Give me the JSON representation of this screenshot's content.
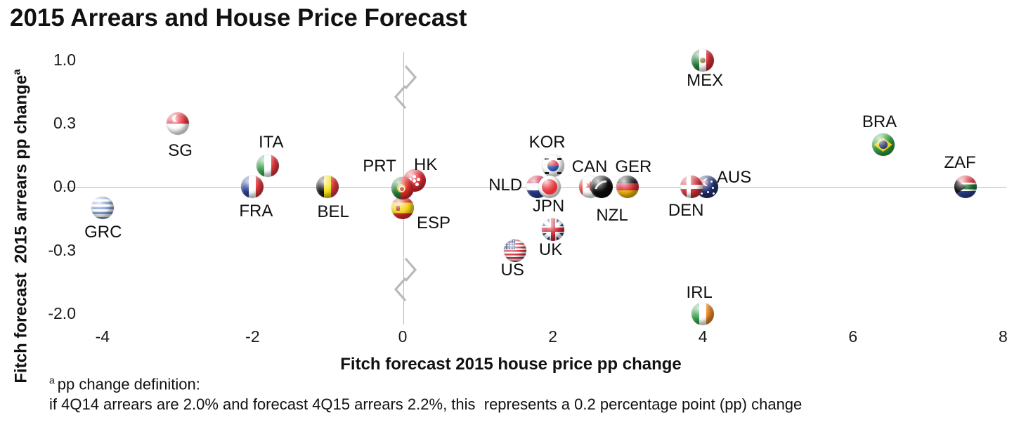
{
  "title": "2015 Arrears and House Price Forecast",
  "y_axis": {
    "label_main": "Fitch forecast  2015 arrears pp change",
    "label_sup": "a",
    "tick_labels": [
      "1.0",
      "0.3",
      "0.0",
      "-0.3",
      "-2.0"
    ]
  },
  "x_axis": {
    "label": "Fitch forecast 2015 house price pp change",
    "tick_labels": [
      "-4",
      "-2",
      "0",
      "2",
      "4",
      "6",
      "8"
    ]
  },
  "footnote": {
    "sup": "a",
    "line1": "pp change definition:",
    "line2": "if 4Q14 arrears are 2.0% and forecast 4Q15 arrears 2.2%, this  represents a 0.2 percentage point (pp) change"
  },
  "chart_data": {
    "type": "scatter",
    "title": "2015 Arrears and House Price Forecast",
    "xlabel": "Fitch forecast 2015 house price pp change",
    "ylabel": "Fitch forecast 2015 arrears pp change (a)",
    "x_ticks": [
      -4,
      -2,
      0,
      2,
      4,
      6,
      8
    ],
    "y_ticks": [
      1.0,
      0.3,
      0.0,
      -0.3,
      -2.0
    ],
    "xlim": [
      -4,
      8
    ],
    "grid": false,
    "y_scale_note": "non-linear y axis; break symbols between 1.0 and 0.3 and between -0.3 and -2.0",
    "marker_style": "glossy circular country-flag icons",
    "points": [
      {
        "code": "GRC",
        "x": -4.0,
        "y": -0.1,
        "label_offset": [
          1,
          35
        ]
      },
      {
        "code": "SG",
        "x": -3.0,
        "y": 0.3,
        "label_offset": [
          4,
          39
        ]
      },
      {
        "code": "FRA",
        "x": -2.0,
        "y": 0.0,
        "label_offset": [
          5,
          35
        ]
      },
      {
        "code": "ITA",
        "x": -1.8,
        "y": 0.1,
        "label_offset": [
          5,
          -33
        ]
      },
      {
        "code": "BEL",
        "x": -1.0,
        "y": 0.0,
        "label_offset": [
          8,
          36
        ]
      },
      {
        "code": "HK",
        "x": 0.1,
        "y": 0.0,
        "jitter": [
          6,
          -9
        ],
        "label_offset": [
          16,
          -22
        ]
      },
      {
        "code": "ESP",
        "x": 0.0,
        "y": -0.1,
        "label_offset": [
          44,
          22
        ]
      },
      {
        "code": "PRT",
        "x": 0.0,
        "y": 0.0,
        "jitter": [
          0,
          2
        ],
        "label_offset": [
          -33,
          -31
        ]
      },
      {
        "code": "KOR",
        "x": 2.0,
        "y": 0.1,
        "label_offset": [
          -8,
          -33
        ]
      },
      {
        "code": "NLD",
        "x": 1.8,
        "y": 0.0,
        "label_offset": [
          -46,
          -2
        ]
      },
      {
        "code": "JPN",
        "x": 2.0,
        "y": 0.0,
        "jitter": [
          -5,
          0
        ],
        "label_offset": [
          -1,
          28
        ]
      },
      {
        "code": "US",
        "x": 1.5,
        "y": -0.3,
        "label_offset": [
          -4,
          28
        ]
      },
      {
        "code": "UK",
        "x": 2.0,
        "y": -0.2,
        "label_offset": [
          -3,
          29
        ]
      },
      {
        "code": "CAN",
        "x": 2.5,
        "y": 0.0,
        "label_offset": [
          -1,
          -28
        ]
      },
      {
        "code": "NZL",
        "x": 2.65,
        "y": 0.0,
        "label_offset": [
          15,
          41
        ]
      },
      {
        "code": "GER",
        "x": 3.0,
        "y": 0.0,
        "label_offset": [
          8,
          -28
        ]
      },
      {
        "code": "AUS",
        "x": 4.05,
        "y": 0.0,
        "label_offset": [
          39,
          -13
        ]
      },
      {
        "code": "DEN",
        "x": 3.85,
        "y": 0.0,
        "label_offset": [
          -8,
          34
        ]
      },
      {
        "code": "MEX",
        "x": 4.0,
        "y": 1.0,
        "label_offset": [
          3,
          29
        ]
      },
      {
        "code": "IRL",
        "x": 4.0,
        "y": -2.0,
        "label_offset": [
          -5,
          -30
        ]
      },
      {
        "code": "BRA",
        "x": 6.4,
        "y": 0.2,
        "label_offset": [
          -5,
          -32
        ]
      },
      {
        "code": "ZAF",
        "x": 7.5,
        "y": 0.0,
        "label_offset": [
          -8,
          -34
        ]
      }
    ]
  }
}
